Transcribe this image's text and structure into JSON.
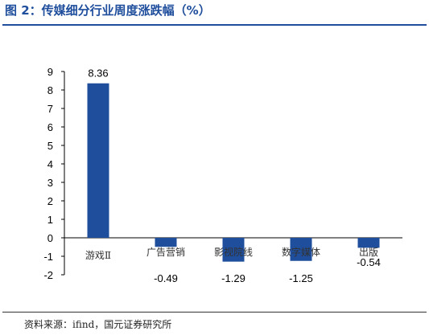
{
  "header": {
    "title": "图 2：传媒细分行业周度涨跌幅（%）"
  },
  "chart_data": {
    "type": "bar",
    "title": "",
    "xlabel": "",
    "ylabel": "",
    "categories": [
      "游戏Ⅱ",
      "广告营销",
      "影视院线",
      "数字媒体",
      "出版"
    ],
    "values": [
      8.36,
      -0.49,
      -1.29,
      -1.25,
      -0.54
    ],
    "data_labels": [
      "8.36",
      "-0.49",
      "-1.29",
      "-1.25",
      "-0.54"
    ],
    "ylim": [
      -2,
      9
    ],
    "yticks": [
      9,
      8,
      7,
      6,
      5,
      4,
      3,
      2,
      1,
      0,
      -1,
      -2
    ],
    "bar_color": "#1f4e9c",
    "grid": false,
    "legend": "none"
  },
  "footer": {
    "source": "资料来源：ifind，国元证券研究所"
  }
}
